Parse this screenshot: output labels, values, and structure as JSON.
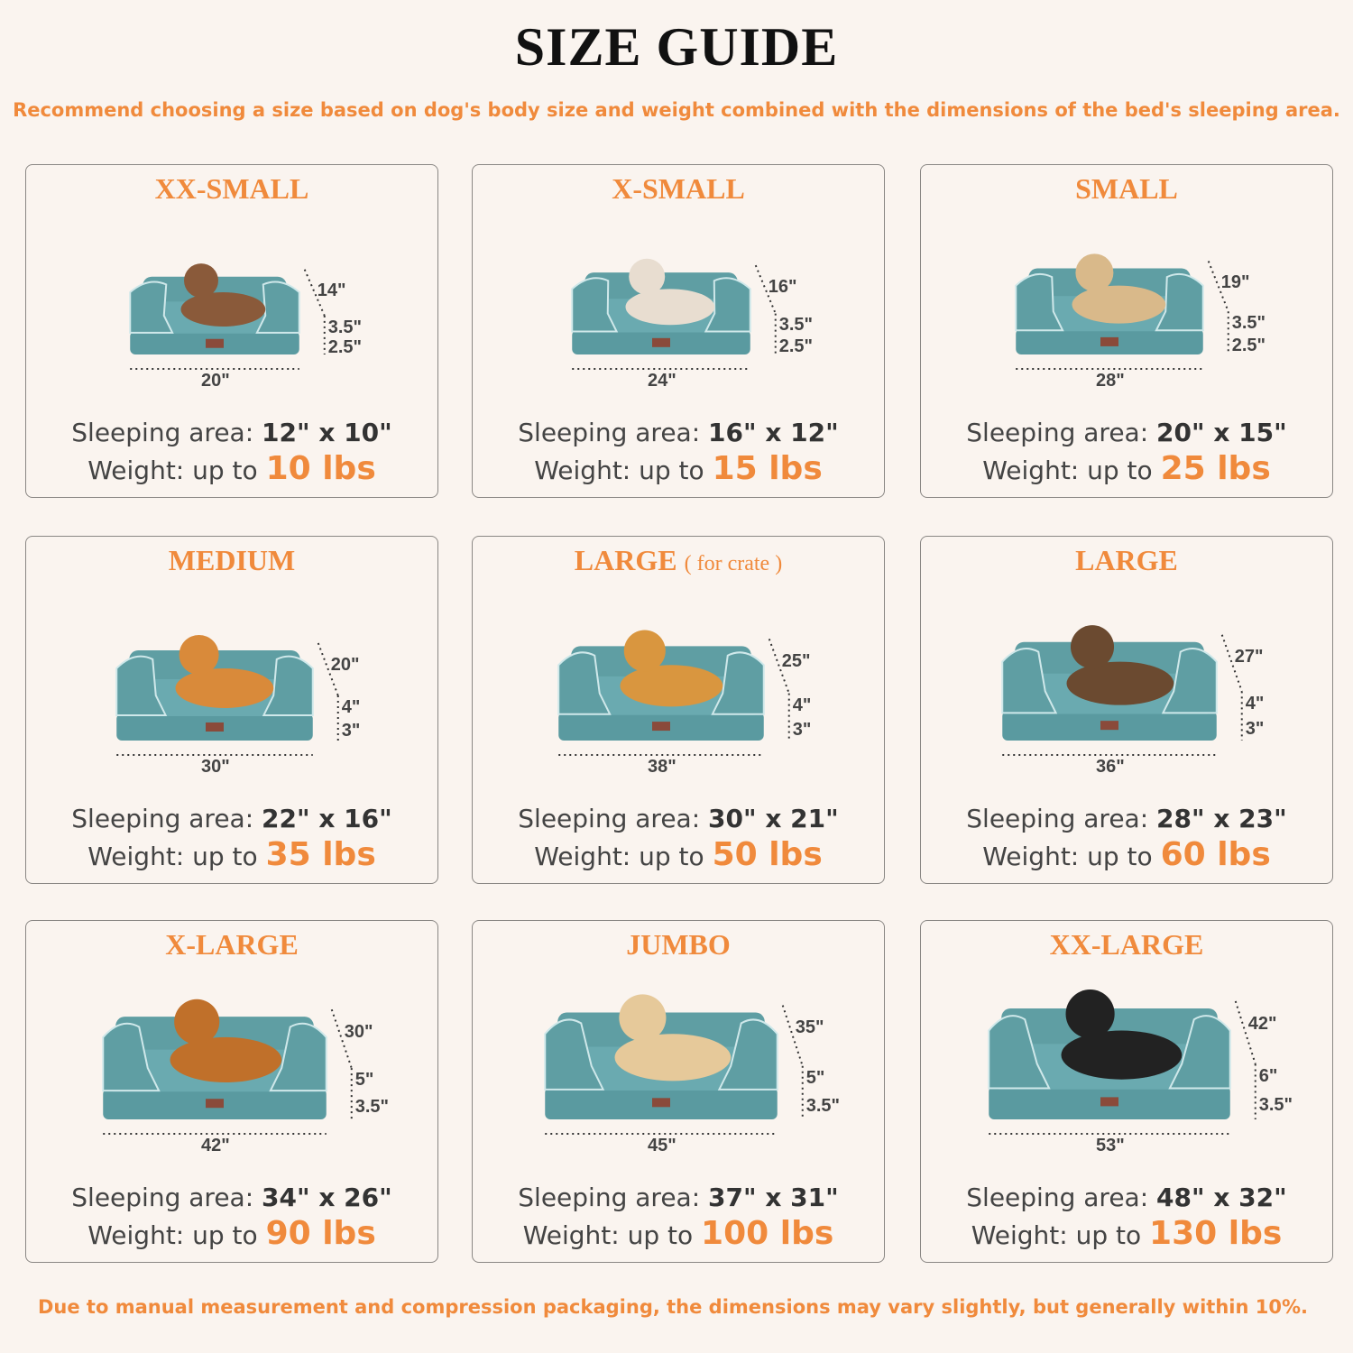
{
  "header": {
    "title": "SIZE GUIDE",
    "subtitle": "Recommend choosing a size based on dog's body size and weight combined with the dimensions of the bed's sleeping area."
  },
  "labels": {
    "sleeping_area": "Sleeping area:",
    "weight": "Weight: up to"
  },
  "colors": {
    "accent": "#f08a3c",
    "bed": "#5f9ea3",
    "background": "#faf4ef"
  },
  "sizes": [
    {
      "name": "XX-SMALL",
      "note": "",
      "pet": "cat",
      "depth": "14\"",
      "h1": "3.5\"",
      "h2": "2.5\"",
      "width": "20\"",
      "area": "12\" x 10\"",
      "weight": "10 lbs"
    },
    {
      "name": "X-SMALL",
      "note": "",
      "pet": "small-dog",
      "depth": "16\"",
      "h1": "3.5\"",
      "h2": "2.5\"",
      "width": "24\"",
      "area": "16\" x 12\"",
      "weight": "15 lbs"
    },
    {
      "name": "SMALL",
      "note": "",
      "pet": "french-bulldog",
      "depth": "19\"",
      "h1": "3.5\"",
      "h2": "2.5\"",
      "width": "28\"",
      "area": "20\" x 15\"",
      "weight": "25 lbs"
    },
    {
      "name": "MEDIUM",
      "note": "",
      "pet": "corgi",
      "depth": "20\"",
      "h1": "4\"",
      "h2": "3\"",
      "width": "30\"",
      "area": "22\" x 16\"",
      "weight": "35 lbs"
    },
    {
      "name": "LARGE",
      "note": "( for crate )",
      "pet": "shiba-inu",
      "depth": "25\"",
      "h1": "4\"",
      "h2": "3\"",
      "width": "38\"",
      "area": "30\" x 21\"",
      "weight": "50 lbs"
    },
    {
      "name": "LARGE",
      "note": "",
      "pet": "border-collie",
      "depth": "27\"",
      "h1": "4\"",
      "h2": "3\"",
      "width": "36\"",
      "area": "28\" x 23\"",
      "weight": "60 lbs"
    },
    {
      "name": "X-LARGE",
      "note": "",
      "pet": "golden-retriever",
      "depth": "30\"",
      "h1": "5\"",
      "h2": "3.5\"",
      "width": "42\"",
      "area": "34\" x 26\"",
      "weight": "90 lbs"
    },
    {
      "name": "JUMBO",
      "note": "",
      "pet": "labrador",
      "depth": "35\"",
      "h1": "5\"",
      "h2": "3.5\"",
      "width": "45\"",
      "area": "37\" x 31\"",
      "weight": "100 lbs"
    },
    {
      "name": "XX-LARGE",
      "note": "",
      "pet": "rottweiler",
      "depth": "42\"",
      "h1": "6\"",
      "h2": "3.5\"",
      "width": "53\"",
      "area": "48\" x 32\"",
      "weight": "130 lbs"
    }
  ],
  "footer": "Due to manual measurement and compression packaging, the dimensions may vary slightly, but generally within 10%."
}
